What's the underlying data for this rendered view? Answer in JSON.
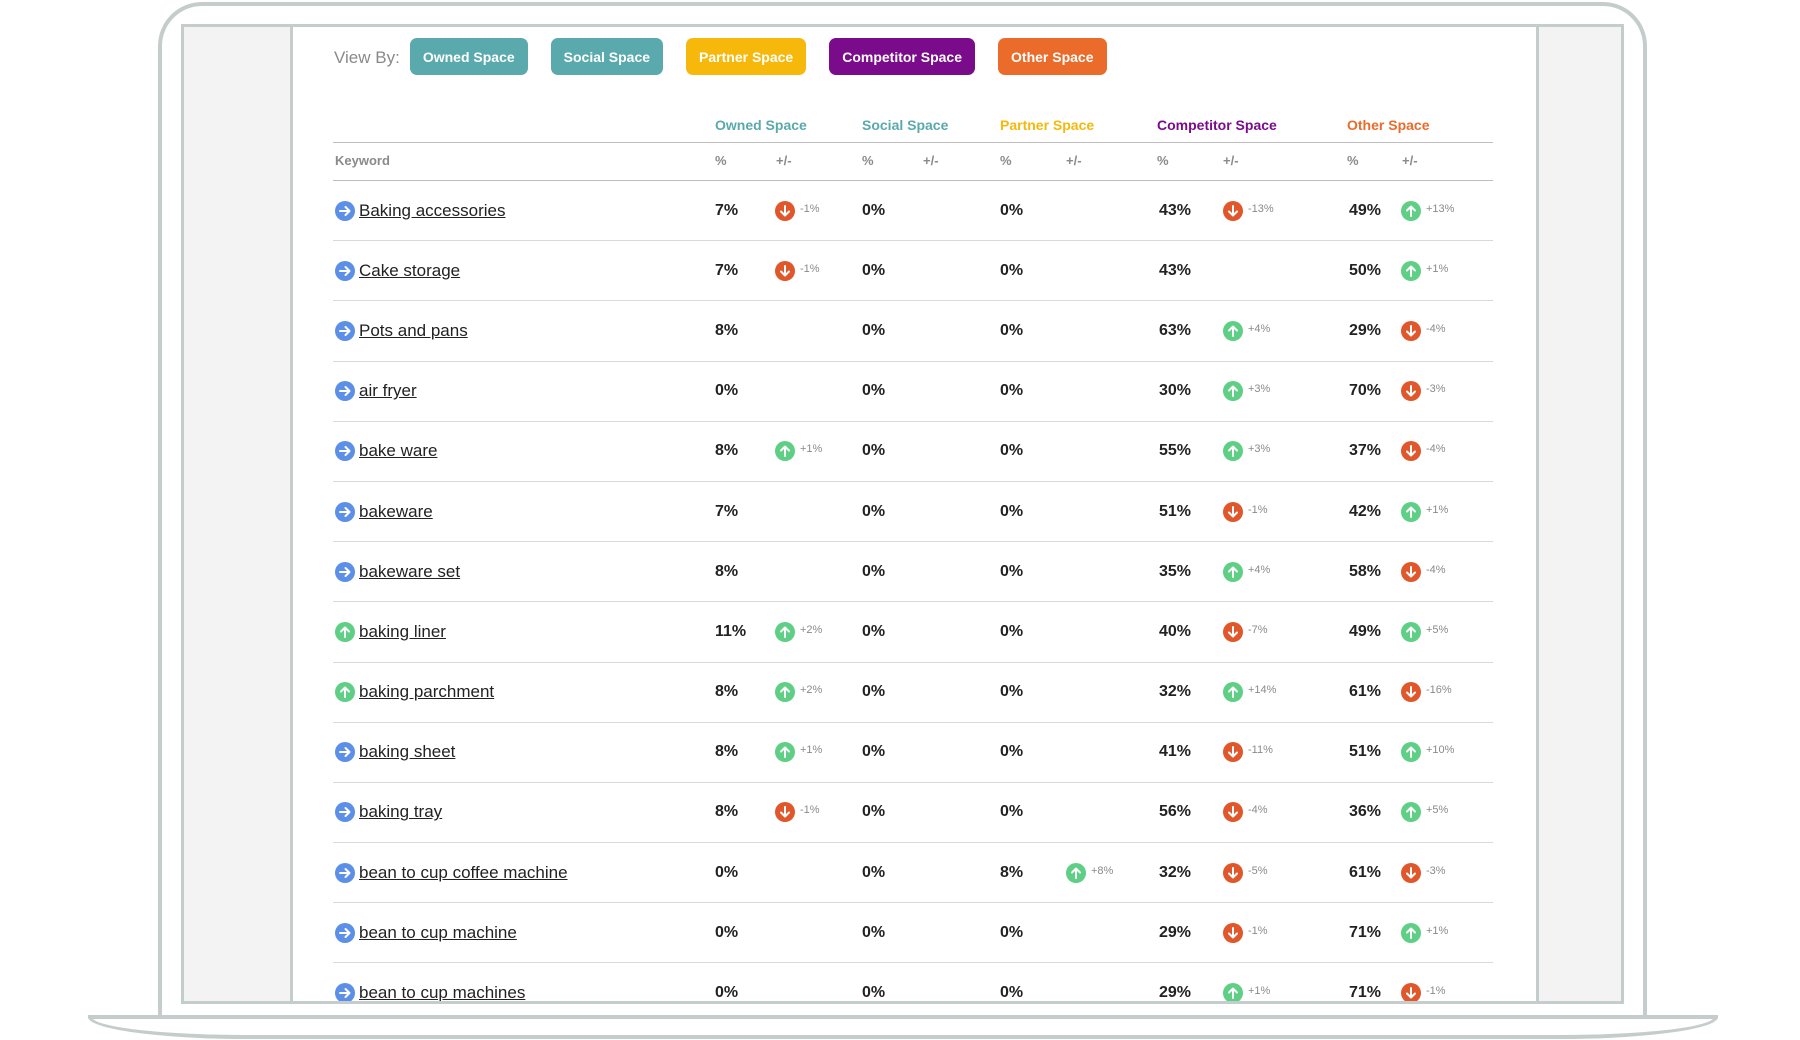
{
  "view_by": {
    "label": "View By:",
    "buttons": [
      {
        "label": "Owned Space",
        "color": "#5aa9ad"
      },
      {
        "label": "Social Space",
        "color": "#5aa9ad"
      },
      {
        "label": "Partner Space",
        "color": "#f5b80b"
      },
      {
        "label": "Competitor Space",
        "color": "#7a0c8c"
      },
      {
        "label": "Other Space",
        "color": "#eb6b2a"
      }
    ]
  },
  "colors": {
    "owned": "#5aa9ad",
    "social": "#5aa9ad",
    "partner": "#f5b80b",
    "competitor": "#7a0c8c",
    "other": "#eb6b2a",
    "up": "#5fcf85",
    "down": "#e0572b",
    "neutral": "#5b8fe8"
  },
  "table": {
    "groups": [
      "Owned Space",
      "Social Space",
      "Partner Space",
      "Competitor Space",
      "Other Space"
    ],
    "keyword_header": "Keyword",
    "pct_header": "%",
    "change_header": "+/-",
    "rows": [
      {
        "keyword": "Baking accessories",
        "icon": "neutral",
        "owned": [
          "7%",
          "down",
          "-1%"
        ],
        "social": [
          "0%",
          "",
          ""
        ],
        "partner": [
          "0%",
          "",
          ""
        ],
        "competitor": [
          "43%",
          "down",
          "-13%"
        ],
        "other": [
          "49%",
          "up",
          "+13%"
        ]
      },
      {
        "keyword": "Cake storage",
        "icon": "neutral",
        "owned": [
          "7%",
          "down",
          "-1%"
        ],
        "social": [
          "0%",
          "",
          ""
        ],
        "partner": [
          "0%",
          "",
          ""
        ],
        "competitor": [
          "43%",
          "",
          ""
        ],
        "other": [
          "50%",
          "up",
          "+1%"
        ]
      },
      {
        "keyword": "Pots and pans",
        "icon": "neutral",
        "owned": [
          "8%",
          "",
          ""
        ],
        "social": [
          "0%",
          "",
          ""
        ],
        "partner": [
          "0%",
          "",
          ""
        ],
        "competitor": [
          "63%",
          "up",
          "+4%"
        ],
        "other": [
          "29%",
          "down",
          "-4%"
        ]
      },
      {
        "keyword": "air fryer",
        "icon": "neutral",
        "owned": [
          "0%",
          "",
          ""
        ],
        "social": [
          "0%",
          "",
          ""
        ],
        "partner": [
          "0%",
          "",
          ""
        ],
        "competitor": [
          "30%",
          "up",
          "+3%"
        ],
        "other": [
          "70%",
          "down",
          "-3%"
        ]
      },
      {
        "keyword": "bake ware",
        "icon": "neutral",
        "owned": [
          "8%",
          "up",
          "+1%"
        ],
        "social": [
          "0%",
          "",
          ""
        ],
        "partner": [
          "0%",
          "",
          ""
        ],
        "competitor": [
          "55%",
          "up",
          "+3%"
        ],
        "other": [
          "37%",
          "down",
          "-4%"
        ]
      },
      {
        "keyword": "bakeware",
        "icon": "neutral",
        "owned": [
          "7%",
          "",
          ""
        ],
        "social": [
          "0%",
          "",
          ""
        ],
        "partner": [
          "0%",
          "",
          ""
        ],
        "competitor": [
          "51%",
          "down",
          "-1%"
        ],
        "other": [
          "42%",
          "up",
          "+1%"
        ]
      },
      {
        "keyword": "bakeware set",
        "icon": "neutral",
        "owned": [
          "8%",
          "",
          ""
        ],
        "social": [
          "0%",
          "",
          ""
        ],
        "partner": [
          "0%",
          "",
          ""
        ],
        "competitor": [
          "35%",
          "up",
          "+4%"
        ],
        "other": [
          "58%",
          "down",
          "-4%"
        ]
      },
      {
        "keyword": "baking liner",
        "icon": "up",
        "owned": [
          "11%",
          "up",
          "+2%"
        ],
        "social": [
          "0%",
          "",
          ""
        ],
        "partner": [
          "0%",
          "",
          ""
        ],
        "competitor": [
          "40%",
          "down",
          "-7%"
        ],
        "other": [
          "49%",
          "up",
          "+5%"
        ]
      },
      {
        "keyword": "baking parchment",
        "icon": "up",
        "owned": [
          "8%",
          "up",
          "+2%"
        ],
        "social": [
          "0%",
          "",
          ""
        ],
        "partner": [
          "0%",
          "",
          ""
        ],
        "competitor": [
          "32%",
          "up",
          "+14%"
        ],
        "other": [
          "61%",
          "down",
          "-16%"
        ]
      },
      {
        "keyword": "baking sheet",
        "icon": "neutral",
        "owned": [
          "8%",
          "up",
          "+1%"
        ],
        "social": [
          "0%",
          "",
          ""
        ],
        "partner": [
          "0%",
          "",
          ""
        ],
        "competitor": [
          "41%",
          "down",
          "-11%"
        ],
        "other": [
          "51%",
          "up",
          "+10%"
        ]
      },
      {
        "keyword": "baking tray",
        "icon": "neutral",
        "owned": [
          "8%",
          "down",
          "-1%"
        ],
        "social": [
          "0%",
          "",
          ""
        ],
        "partner": [
          "0%",
          "",
          ""
        ],
        "competitor": [
          "56%",
          "down",
          "-4%"
        ],
        "other": [
          "36%",
          "up",
          "+5%"
        ]
      },
      {
        "keyword": "bean to cup coffee machine",
        "icon": "neutral",
        "owned": [
          "0%",
          "",
          ""
        ],
        "social": [
          "0%",
          "",
          ""
        ],
        "partner": [
          "8%",
          "up",
          "+8%"
        ],
        "competitor": [
          "32%",
          "down",
          "-5%"
        ],
        "other": [
          "61%",
          "down",
          "-3%"
        ]
      },
      {
        "keyword": "bean to cup machine",
        "icon": "neutral",
        "owned": [
          "0%",
          "",
          ""
        ],
        "social": [
          "0%",
          "",
          ""
        ],
        "partner": [
          "0%",
          "",
          ""
        ],
        "competitor": [
          "29%",
          "down",
          "-1%"
        ],
        "other": [
          "71%",
          "up",
          "+1%"
        ]
      },
      {
        "keyword": "bean to cup machines",
        "icon": "neutral",
        "owned": [
          "0%",
          "",
          ""
        ],
        "social": [
          "0%",
          "",
          ""
        ],
        "partner": [
          "0%",
          "",
          ""
        ],
        "competitor": [
          "29%",
          "up",
          "+1%"
        ],
        "other": [
          "71%",
          "down",
          "-1%"
        ]
      }
    ]
  }
}
